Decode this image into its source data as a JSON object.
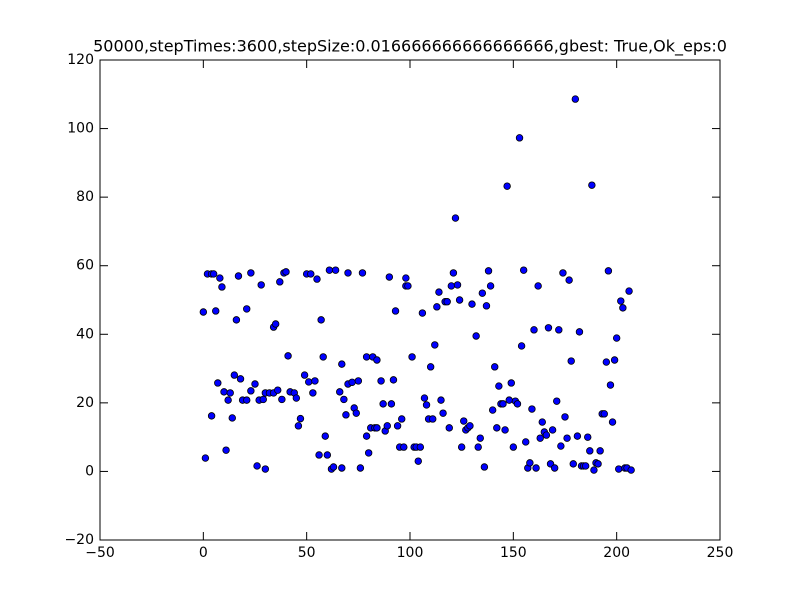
{
  "chart_data": {
    "type": "scatter",
    "title": "50000,stepTimes:3600,stepSize:0.016666666666666666,gbest: True,Ok_eps:0",
    "color": "#0000ff",
    "edgecolor": "#000000",
    "xlim": [
      -50,
      250
    ],
    "xticks": [
      {
        "value": -50,
        "label": "−50"
      },
      0,
      50,
      100,
      150,
      200,
      250
    ],
    "ylim": [
      -20,
      120
    ],
    "yticks": [
      {
        "value": -20,
        "label": "−20"
      },
      0,
      20,
      40,
      60,
      80,
      100,
      120
    ],
    "x": [
      0,
      1,
      2,
      4,
      4,
      5,
      6,
      7,
      8,
      9,
      10,
      11,
      12,
      13,
      14,
      15,
      16,
      17,
      18,
      19,
      21,
      21,
      23,
      23,
      25,
      26,
      27,
      28,
      29,
      30,
      30,
      32,
      34,
      34,
      35,
      36,
      37,
      38,
      39,
      40,
      41,
      42,
      44,
      45,
      46,
      47,
      49,
      50,
      51,
      52,
      53,
      54,
      55,
      56,
      57,
      58,
      59,
      60,
      61,
      62,
      63,
      64,
      66,
      67,
      67,
      68,
      69,
      70,
      70,
      72,
      73,
      74,
      75,
      76,
      77,
      79,
      79,
      80,
      81,
      82,
      83,
      84,
      84,
      86,
      87,
      88,
      89,
      90,
      91,
      92,
      93,
      94,
      95,
      96,
      97,
      98,
      98,
      99,
      101,
      102,
      103,
      104,
      105,
      106,
      107,
      108,
      109,
      110,
      111,
      112,
      113,
      114,
      115,
      116,
      117,
      118,
      119,
      120,
      121,
      122,
      123,
      124,
      125,
      126,
      127,
      128,
      129,
      130,
      132,
      133,
      134,
      135,
      136,
      137,
      138,
      139,
      140,
      141,
      142,
      143,
      144,
      145,
      146,
      147,
      148,
      149,
      150,
      151,
      152,
      153,
      154,
      155,
      156,
      157,
      158,
      159,
      160,
      161,
      162,
      163,
      164,
      165,
      166,
      167,
      168,
      169,
      170,
      171,
      172,
      173,
      174,
      175,
      176,
      177,
      178,
      179,
      180,
      181,
      182,
      183,
      184,
      185,
      186,
      187,
      188,
      189,
      190,
      191,
      192,
      193,
      194,
      195,
      196,
      197,
      198,
      199,
      200,
      201,
      202,
      203,
      204,
      205,
      206,
      207
    ],
    "y": [
      46.5,
      3.9,
      57.6,
      57.6,
      16.2,
      57.6,
      46.8,
      25.8,
      56.4,
      53.8,
      23.2,
      6.2,
      20.8,
      22.9,
      15.6,
      28.1,
      44.2,
      57,
      27,
      20.8,
      20.8,
      47.4,
      57.9,
      23.5,
      25.5,
      1.6,
      20.8,
      54.4,
      21,
      22.9,
      0.7,
      22.9,
      22.9,
      42.1,
      43,
      23.7,
      55.3,
      21,
      57.9,
      58.2,
      33.7,
      23.2,
      22.9,
      21.4,
      13.3,
      15.4,
      28.1,
      57.6,
      26.1,
      57.6,
      22.9,
      26.4,
      56.1,
      4.8,
      44.2,
      33.4,
      10.3,
      4.8,
      58.7,
      0.7,
      1.3,
      58.7,
      23.2,
      1,
      31.3,
      21,
      16.5,
      57.9,
      25.5,
      26,
      18.5,
      17,
      26.4,
      1,
      57.9,
      33.4,
      10.3,
      5.4,
      12.7,
      33.4,
      12.7,
      12.7,
      32.5,
      26.4,
      19.7,
      11.8,
      13.3,
      56.7,
      19.7,
      26.7,
      46.8,
      13.3,
      7.1,
      15.3,
      7.1,
      54.1,
      56.4,
      54.1,
      33.4,
      7.1,
      7.1,
      3,
      7.1,
      46.2,
      21.4,
      19.4,
      15.3,
      30.5,
      15.3,
      36.9,
      48,
      52.3,
      20.8,
      17,
      49.5,
      49.5,
      12.7,
      54.1,
      57.9,
      73.9,
      54.4,
      50,
      7.1,
      14.7,
      12.1,
      12.7,
      13.3,
      48.8,
      39.5,
      7.1,
      9.7,
      52,
      1.3,
      48.3,
      58.5,
      54.1,
      17.9,
      30.5,
      12.7,
      24.9,
      19.7,
      19.7,
      12.1,
      83.2,
      20.8,
      25.8,
      7.1,
      20.5,
      19.7,
      97.3,
      36.6,
      58.7,
      8.6,
      1,
      2.5,
      18.2,
      41.3,
      1,
      54.1,
      9.7,
      14.4,
      11.5,
      10.6,
      41.9,
      2.2,
      12.1,
      1,
      20.5,
      41.3,
      7.4,
      57.9,
      15.9,
      9.7,
      55.8,
      32.2,
      2.2,
      108.6,
      10.3,
      40.7,
      1.6,
      1.6,
      1.6,
      10,
      6,
      83.5,
      0.4,
      2.5,
      2.2,
      6,
      16.8,
      16.8,
      31.9,
      58.5,
      25.2,
      14.4,
      32.5,
      38.9,
      0.7,
      49.7,
      47.7,
      1,
      1,
      52.6,
      0.4
    ]
  }
}
